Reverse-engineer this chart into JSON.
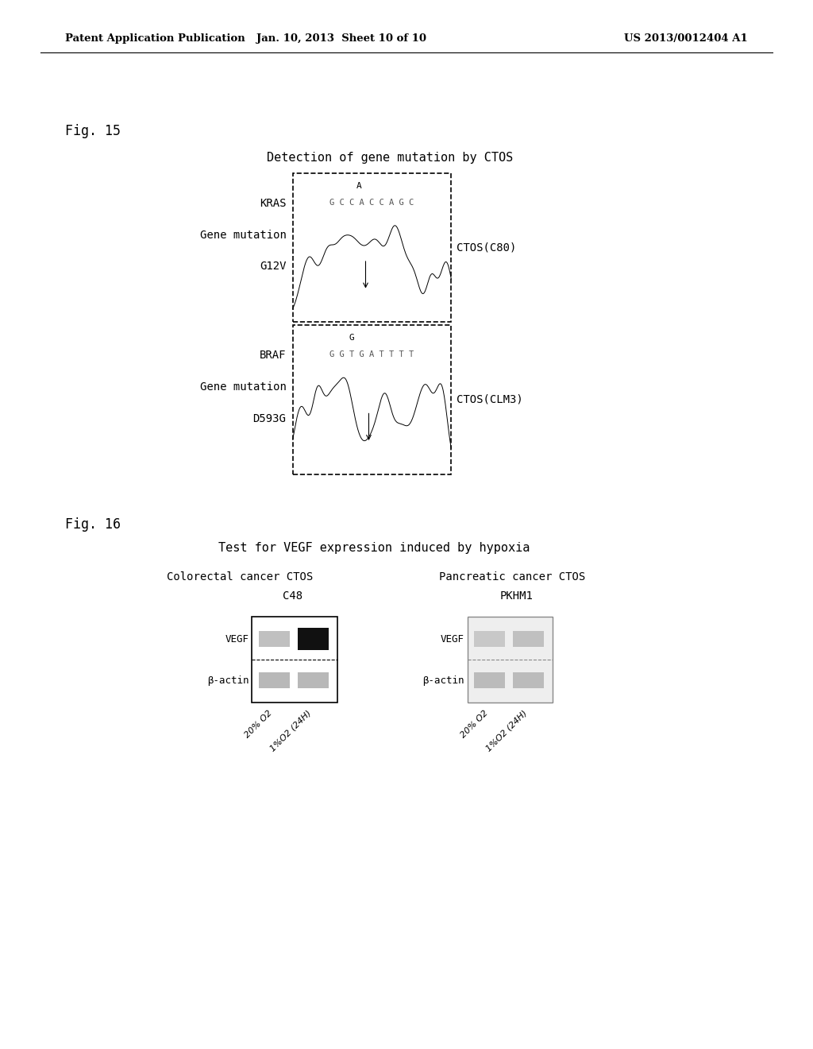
{
  "bg_color": "#ffffff",
  "header_left": "Patent Application Publication",
  "header_mid": "Jan. 10, 2013  Sheet 10 of 10",
  "header_right": "US 2013/0012404 A1",
  "fig15_label": "Fig. 15",
  "fig15_title": "Detection of gene mutation by CTOS",
  "seq_top_kras": "A",
  "seq_kras": "G C C A C C A G C",
  "seq_top_braf": "G",
  "seq_braf": "G G T G A T T T T",
  "fig16_label": "Fig. 16",
  "fig16_title": "Test for VEGF expression induced by hypoxia",
  "fig16_left_group": "Colorectal cancer CTOS",
  "fig16_right_group": "Pancreatic cancer CTOS",
  "fig16_left_sample": "C48",
  "fig16_right_sample": "PKHM1",
  "fig16_vegf": "VEGF",
  "fig16_bactin": "β-actin",
  "fig16_label1": "20% O2",
  "fig16_label2": "1%O2 (24H)"
}
